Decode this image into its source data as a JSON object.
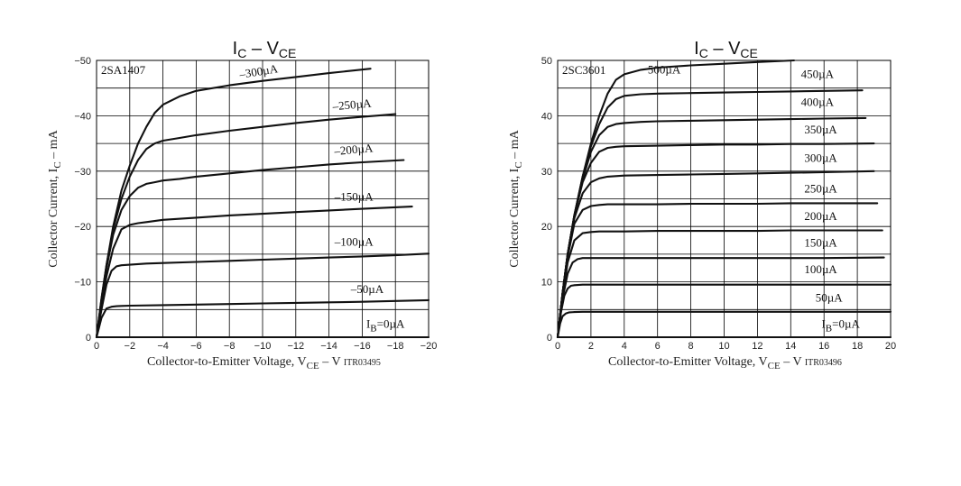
{
  "chart_data": [
    {
      "type": "line",
      "title_main": "I",
      "title_sub1": "C",
      "title_mid": " – V",
      "title_sub2": "CE",
      "part_number": "2SA1407",
      "figure_code": "ITR03495",
      "xlabel_main": "Collector-to-Emitter Voltage, V",
      "xlabel_sub": "CE",
      "xlabel_unit": " – V",
      "ylabel_main": "Collector Current, I",
      "ylabel_sub": "C",
      "ylabel_unit": " – mA",
      "xlim": [
        0,
        -20
      ],
      "ylim": [
        0,
        -50
      ],
      "x_ticks": [
        "0",
        "−2",
        "−4",
        "−6",
        "−8",
        "−10",
        "−12",
        "−14",
        "−16",
        "−18",
        "−20"
      ],
      "x_tick_values": [
        0,
        -2,
        -4,
        -6,
        -8,
        -10,
        -12,
        -14,
        -16,
        -18,
        -20
      ],
      "y_ticks": [
        "0",
        "−10",
        "−20",
        "−30",
        "−40",
        "−50"
      ],
      "y_tick_values": [
        0,
        -10,
        -20,
        -30,
        -40,
        -50
      ],
      "grid": true,
      "series": [
        {
          "name": "–300µA",
          "x": [
            0,
            -0.3,
            -0.6,
            -1,
            -1.5,
            -2,
            -2.5,
            -3,
            -3.5,
            -4,
            -5,
            -6,
            -8,
            -10,
            -12,
            -14,
            -16.5
          ],
          "y": [
            0,
            -7,
            -13,
            -20,
            -26.5,
            -31,
            -35,
            -38,
            -40.5,
            -42,
            -43.5,
            -44.5,
            -45.5,
            -46.3,
            -47,
            -47.7,
            -48.5
          ]
        },
        {
          "name": "–250µA",
          "x": [
            0,
            -0.3,
            -0.6,
            -1,
            -1.5,
            -2,
            -2.5,
            -3,
            -3.5,
            -4,
            -5,
            -6,
            -8,
            -10,
            -12,
            -14,
            -16,
            -18
          ],
          "y": [
            0,
            -7,
            -13,
            -19.5,
            -25,
            -29,
            -32,
            -34,
            -35,
            -35.5,
            -36,
            -36.5,
            -37.3,
            -38,
            -38.7,
            -39.3,
            -39.8,
            -40.3
          ]
        },
        {
          "name": "–200µA",
          "x": [
            0,
            -0.3,
            -0.6,
            -1,
            -1.5,
            -2,
            -2.5,
            -3,
            -3.5,
            -4,
            -5,
            -6,
            -8,
            -10,
            -12,
            -14,
            -16,
            -18.5
          ],
          "y": [
            0,
            -6.5,
            -12.5,
            -18.5,
            -23,
            -25.5,
            -27,
            -27.7,
            -28,
            -28.3,
            -28.6,
            -29,
            -29.6,
            -30.2,
            -30.7,
            -31.2,
            -31.6,
            -32
          ]
        },
        {
          "name": "–150µA",
          "x": [
            0,
            -0.3,
            -0.6,
            -1,
            -1.5,
            -2,
            -2.5,
            -3,
            -4,
            -6,
            -8,
            -10,
            -12,
            -14,
            -16,
            -19
          ],
          "y": [
            0,
            -6,
            -11,
            -16,
            -19.5,
            -20.3,
            -20.6,
            -20.8,
            -21.2,
            -21.6,
            -22,
            -22.3,
            -22.6,
            -22.9,
            -23.2,
            -23.6
          ]
        },
        {
          "name": "–100µA",
          "x": [
            0,
            -0.3,
            -0.6,
            -0.9,
            -1.2,
            -1.5,
            -2,
            -3,
            -4,
            -6,
            -8,
            -10,
            -12,
            -14,
            -16,
            -18,
            -20
          ],
          "y": [
            0,
            -5,
            -9.5,
            -12,
            -12.8,
            -13,
            -13.1,
            -13.3,
            -13.4,
            -13.6,
            -13.8,
            -14,
            -14.2,
            -14.4,
            -14.6,
            -14.8,
            -15.1
          ]
        },
        {
          "name": "–50µA",
          "x": [
            0,
            -0.3,
            -0.6,
            -0.9,
            -1.2,
            -1.5,
            -2,
            -4,
            -6,
            -8,
            -10,
            -12,
            -14,
            -16,
            -18,
            -20
          ],
          "y": [
            0,
            -3.5,
            -5.2,
            -5.5,
            -5.6,
            -5.65,
            -5.7,
            -5.8,
            -5.9,
            -6,
            -6.1,
            -6.2,
            -6.3,
            -6.4,
            -6.55,
            -6.7
          ]
        },
        {
          "name": "IB=0µA",
          "x": [
            0,
            -20
          ],
          "y": [
            0,
            0
          ]
        }
      ],
      "labels": [
        {
          "text": "–300µA",
          "x": -9.8,
          "y": -47.3,
          "rotate": -9
        },
        {
          "text": "–250µA",
          "x": -15.4,
          "y": -41.3,
          "rotate": -5
        },
        {
          "text": "–200µA",
          "x": -15.5,
          "y": -33.2,
          "rotate": -5
        },
        {
          "text": "–150µA",
          "x": -15.5,
          "y": -24.7,
          "rotate": 0
        },
        {
          "text": "–100µA",
          "x": -15.5,
          "y": -16.5,
          "rotate": 0
        },
        {
          "text": "–50µA",
          "x": -16.3,
          "y": -8,
          "rotate": 0
        },
        {
          "text": "=0µA",
          "x": -17.4,
          "y": -1.7,
          "rotate": 0,
          "prefix": "I",
          "prefix_sub": "B"
        }
      ]
    },
    {
      "type": "line",
      "title_main": "I",
      "title_sub1": "C",
      "title_mid": " – V",
      "title_sub2": "CE",
      "part_number": "2SC3601",
      "figure_code": "ITR03496",
      "xlabel_main": "Collector-to-Emitter Voltage, V",
      "xlabel_sub": "CE",
      "xlabel_unit": " – V",
      "ylabel_main": "Collector Current, I",
      "ylabel_sub": "C",
      "ylabel_unit": " – mA",
      "xlim": [
        0,
        20
      ],
      "ylim": [
        0,
        50
      ],
      "x_ticks": [
        "0",
        "2",
        "4",
        "6",
        "8",
        "10",
        "12",
        "14",
        "16",
        "18",
        "20"
      ],
      "x_tick_values": [
        0,
        2,
        4,
        6,
        8,
        10,
        12,
        14,
        16,
        18,
        20
      ],
      "y_ticks": [
        "0",
        "10",
        "20",
        "30",
        "40",
        "50"
      ],
      "y_tick_values": [
        0,
        10,
        20,
        30,
        40,
        50
      ],
      "grid": true,
      "series": [
        {
          "name": "500µA",
          "x": [
            0,
            0.3,
            0.6,
            1,
            1.5,
            2,
            2.5,
            3,
            3.5,
            4,
            5,
            6,
            8,
            10,
            12,
            14.2
          ],
          "y": [
            0,
            8,
            15,
            22,
            29,
            35,
            40,
            44,
            46.5,
            47.5,
            48.3,
            48.7,
            49.1,
            49.4,
            49.7,
            50
          ]
        },
        {
          "name": "450µA",
          "x": [
            0,
            0.3,
            0.6,
            1,
            1.5,
            2,
            2.5,
            3,
            3.5,
            4,
            5,
            6,
            8,
            10,
            12,
            14,
            16,
            18.3
          ],
          "y": [
            0,
            8,
            15,
            22,
            29,
            34.5,
            38.5,
            41.5,
            43,
            43.6,
            43.9,
            44,
            44.1,
            44.2,
            44.3,
            44.4,
            44.5,
            44.6
          ]
        },
        {
          "name": "400µA",
          "x": [
            0,
            0.3,
            0.6,
            1,
            1.5,
            2,
            2.5,
            3,
            3.5,
            4,
            5,
            6,
            8,
            10,
            12,
            14,
            16,
            18.5
          ],
          "y": [
            0,
            8,
            15,
            22,
            28.5,
            33.5,
            36.5,
            38,
            38.5,
            38.7,
            38.9,
            39,
            39.1,
            39.2,
            39.3,
            39.4,
            39.5,
            39.6
          ]
        },
        {
          "name": "350µA",
          "x": [
            0,
            0.3,
            0.6,
            1,
            1.5,
            2,
            2.5,
            3,
            3.5,
            4,
            6,
            8,
            10,
            12,
            14,
            16,
            19
          ],
          "y": [
            0,
            8,
            15,
            22,
            28,
            31.5,
            33.5,
            34.2,
            34.4,
            34.5,
            34.6,
            34.7,
            34.8,
            34.8,
            34.9,
            34.9,
            35
          ]
        },
        {
          "name": "300µA",
          "x": [
            0,
            0.3,
            0.6,
            1,
            1.5,
            2,
            2.5,
            3,
            3.5,
            4,
            6,
            8,
            10,
            12,
            14,
            16,
            19
          ],
          "y": [
            0,
            8,
            15,
            21.5,
            26,
            28,
            28.7,
            29,
            29.1,
            29.2,
            29.3,
            29.4,
            29.5,
            29.6,
            29.7,
            29.8,
            30
          ]
        },
        {
          "name": "250µA",
          "x": [
            0,
            0.3,
            0.6,
            1,
            1.5,
            2,
            2.5,
            3,
            4,
            6,
            8,
            10,
            12,
            14,
            16,
            19.2
          ],
          "y": [
            0,
            8,
            14.5,
            20.5,
            23,
            23.7,
            23.9,
            24,
            24,
            24,
            24.1,
            24.1,
            24.1,
            24.2,
            24.2,
            24.2
          ]
        },
        {
          "name": "200µA",
          "x": [
            0,
            0.3,
            0.6,
            1,
            1.5,
            2,
            2.5,
            3,
            4,
            6,
            8,
            10,
            12,
            14,
            16,
            19.5
          ],
          "y": [
            0,
            7.5,
            13.5,
            17.5,
            18.8,
            19,
            19.1,
            19.1,
            19.1,
            19.2,
            19.2,
            19.2,
            19.2,
            19.3,
            19.3,
            19.3
          ]
        },
        {
          "name": "150µA",
          "x": [
            0,
            0.3,
            0.6,
            0.9,
            1.2,
            1.5,
            2,
            3,
            4,
            6,
            8,
            10,
            12,
            14,
            16,
            19.6
          ],
          "y": [
            0,
            7,
            11.5,
            13.5,
            14.1,
            14.3,
            14.3,
            14.3,
            14.3,
            14.3,
            14.3,
            14.3,
            14.3,
            14.3,
            14.3,
            14.4
          ]
        },
        {
          "name": "100µA",
          "x": [
            0,
            0.2,
            0.4,
            0.6,
            0.8,
            1,
            1.5,
            2,
            4,
            6,
            8,
            10,
            12,
            14,
            16,
            20
          ],
          "y": [
            0,
            4.5,
            7.5,
            8.8,
            9.3,
            9.4,
            9.5,
            9.5,
            9.5,
            9.5,
            9.5,
            9.5,
            9.5,
            9.5,
            9.5,
            9.5
          ]
        },
        {
          "name": "50µA",
          "x": [
            0,
            0.15,
            0.3,
            0.5,
            0.7,
            1,
            1.5,
            2,
            4,
            6,
            8,
            10,
            12,
            14,
            16,
            20
          ],
          "y": [
            0,
            2.5,
            3.8,
            4.3,
            4.5,
            4.55,
            4.6,
            4.6,
            4.6,
            4.6,
            4.6,
            4.6,
            4.6,
            4.6,
            4.6,
            4.6
          ]
        },
        {
          "name": "IB=0µA",
          "x": [
            0,
            20
          ],
          "y": [
            0,
            0
          ]
        }
      ],
      "labels": [
        {
          "text": "500µA",
          "x": 6.4,
          "y": 47.6,
          "rotate": 0
        },
        {
          "text": "450µA",
          "x": 15.6,
          "y": 46.8,
          "rotate": 0
        },
        {
          "text": "400µA",
          "x": 15.6,
          "y": 41.8,
          "rotate": 0
        },
        {
          "text": "350µA",
          "x": 15.8,
          "y": 36.8,
          "rotate": 0
        },
        {
          "text": "300µA",
          "x": 15.8,
          "y": 31.7,
          "rotate": 0
        },
        {
          "text": "250µA",
          "x": 15.8,
          "y": 26.1,
          "rotate": 0
        },
        {
          "text": "200µA",
          "x": 15.8,
          "y": 21.2,
          "rotate": 0
        },
        {
          "text": "150µA",
          "x": 15.8,
          "y": 16.4,
          "rotate": 0
        },
        {
          "text": "100µA",
          "x": 15.8,
          "y": 11.6,
          "rotate": 0
        },
        {
          "text": "50µA",
          "x": 16.3,
          "y": 6.4,
          "rotate": 0
        },
        {
          "text": "=0µA",
          "x": 17.0,
          "y": 1.7,
          "rotate": 0,
          "prefix": "I",
          "prefix_sub": "B"
        }
      ]
    }
  ]
}
